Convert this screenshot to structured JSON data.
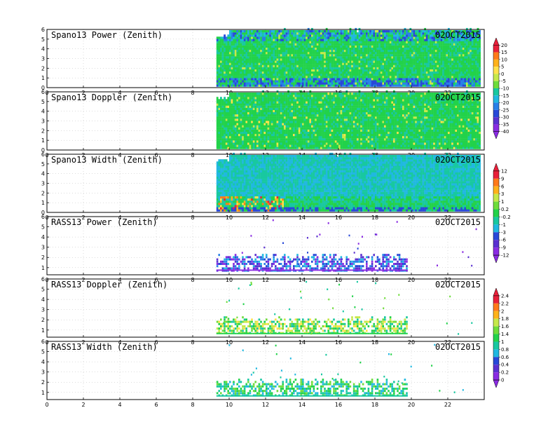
{
  "chart_data": [
    {
      "type": "heatmap",
      "title": "Spano13 Power (Zenith)",
      "date": "02OCT2015",
      "x_ticks": [
        "0",
        "2",
        "4",
        "6",
        "8",
        "10",
        "12",
        "14",
        "16",
        "18",
        "20",
        "22"
      ],
      "y_ticks": [
        "0",
        "1",
        "2",
        "3",
        "4",
        "5",
        "6"
      ],
      "xlim": [
        0,
        24
      ],
      "ylim": [
        0,
        6
      ],
      "grid": true,
      "colorbar": {
        "values": [
          "20",
          "15",
          "10",
          "5",
          "0",
          "-5",
          "-10",
          "-15",
          "-20",
          "-25",
          "-30",
          "-35",
          "-40"
        ],
        "range": [
          -40,
          20
        ]
      },
      "data_start_hour": 9.3,
      "data_end_hour": 23.8
    },
    {
      "type": "heatmap",
      "title": "Spano13 Doppler (Zenith)",
      "date": "02OCT2015",
      "x_ticks": [
        "0",
        "2",
        "4",
        "6",
        "8",
        "10",
        "12",
        "14",
        "16",
        "18",
        "20",
        "22"
      ],
      "y_ticks": [
        "0",
        "1",
        "2",
        "3",
        "4",
        "5",
        "6"
      ],
      "xlim": [
        0,
        24
      ],
      "ylim": [
        0,
        6
      ],
      "grid": true,
      "data_start_hour": 9.3,
      "data_end_hour": 23.8
    },
    {
      "type": "heatmap",
      "title": "Spano13 Width (Zenith)",
      "date": "02OCT2015",
      "x_ticks": [
        "0",
        "2",
        "4",
        "6",
        "8",
        "10",
        "12",
        "14",
        "16",
        "18",
        "20",
        "22"
      ],
      "y_ticks": [
        "0",
        "1",
        "2",
        "3",
        "4",
        "5",
        "6"
      ],
      "xlim": [
        0,
        24
      ],
      "ylim": [
        0,
        6
      ],
      "grid": true,
      "colorbar": {
        "values": [
          "12",
          "9",
          "6",
          "3",
          "1",
          "0.2",
          "-0.2",
          "-1",
          "-3",
          "-6",
          "-9",
          "-12"
        ],
        "range": [
          -12,
          12
        ]
      },
      "data_start_hour": 9.3,
      "data_end_hour": 23.8
    },
    {
      "type": "heatmap",
      "title": "RASS13 Power (Zenith)",
      "date": "02OCT2015",
      "x_ticks": [
        "0",
        "2",
        "4",
        "6",
        "8",
        "10",
        "12",
        "14",
        "16",
        "18",
        "20",
        "22"
      ],
      "y_ticks": [
        "1",
        "2",
        "3",
        "4",
        "5",
        "6"
      ],
      "xlim": [
        0,
        24
      ],
      "ylim": [
        0.3,
        6
      ],
      "grid": true,
      "data_start_hour": 9.3,
      "data_end_hour": 23.8
    },
    {
      "type": "heatmap",
      "title": "RASS13 Doppler (Zenith)",
      "date": "02OCT2015",
      "x_ticks": [
        "0",
        "2",
        "4",
        "6",
        "8",
        "10",
        "12",
        "14",
        "16",
        "18",
        "20",
        "22"
      ],
      "y_ticks": [
        "1",
        "2",
        "3",
        "4",
        "5",
        "6"
      ],
      "xlim": [
        0,
        24
      ],
      "ylim": [
        0.3,
        6
      ],
      "grid": true,
      "colorbar": {
        "values": [
          "2.4",
          "2.2",
          "2",
          "1.8",
          "1.6",
          "1.4",
          "1",
          "0.8",
          "0.6",
          "0.4",
          "0.2",
          "0"
        ],
        "range": [
          0,
          2.4
        ]
      },
      "data_start_hour": 9.3,
      "data_end_hour": 23.8
    },
    {
      "type": "heatmap",
      "title": "RASS13 Width (Zenith)",
      "date": "02OCT2015",
      "x_ticks": [
        "0",
        "2",
        "4",
        "6",
        "8",
        "10",
        "12",
        "14",
        "16",
        "18",
        "20",
        "22"
      ],
      "y_ticks": [
        "1",
        "2",
        "3",
        "4",
        "5",
        "6"
      ],
      "xlim": [
        0,
        24
      ],
      "ylim": [
        0.3,
        6
      ],
      "grid": true,
      "data_start_hour": 9.3,
      "data_end_hour": 23.8
    }
  ],
  "colors": {
    "colorbar_top": "#e8203a",
    "colorbar_bottom": "#8a2be2",
    "palette": [
      "#e8203a",
      "#ff7a1a",
      "#ffb21a",
      "#ffe24a",
      "#c6e84a",
      "#6edc3a",
      "#22d24a",
      "#18c8a0",
      "#20b8e0",
      "#2880e8",
      "#2848d8",
      "#5a30d0",
      "#8a2be2"
    ]
  }
}
